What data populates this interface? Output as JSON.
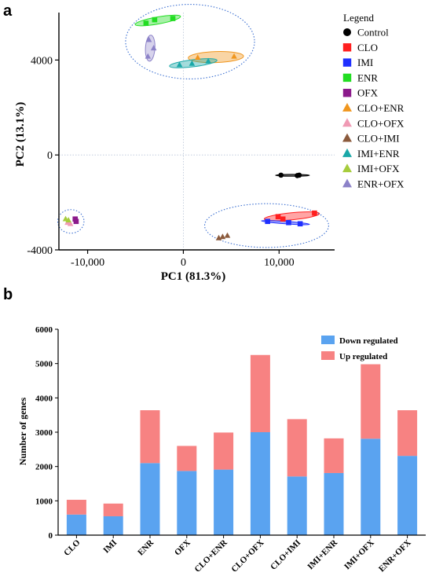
{
  "chart_data": [
    {
      "type": "scatter",
      "panel_label": "a",
      "xlabel": "PC1 (81.3%)",
      "ylabel": "PC2 (13.1%)",
      "xlim": [
        -13000,
        15800
      ],
      "ylim": [
        -4000,
        6000
      ],
      "xticks": [
        -10000,
        0,
        10000
      ],
      "xtick_labels": [
        "-10,000",
        "0",
        "10,000"
      ],
      "yticks": [
        -4000,
        0,
        4000
      ],
      "ytick_labels": [
        "-4000",
        "0",
        "4000"
      ],
      "legend_title": "Legend",
      "legend_position": "right",
      "series": [
        {
          "name": "Control",
          "color": "#000000",
          "marker": "circle",
          "points": [
            [
              10200,
              -850
            ],
            [
              11900,
              -870
            ],
            [
              12100,
              -850
            ]
          ]
        },
        {
          "name": "CLO",
          "color": "#ff1f1f",
          "marker": "square",
          "points": [
            [
              9900,
              -2600
            ],
            [
              10400,
              -2700
            ],
            [
              13700,
              -2450
            ]
          ]
        },
        {
          "name": "IMI",
          "color": "#1f2fff",
          "marker": "square",
          "points": [
            [
              8800,
              -2800
            ],
            [
              11000,
              -2850
            ],
            [
              12200,
              -2900
            ]
          ]
        },
        {
          "name": "ENR",
          "color": "#22dd22",
          "marker": "square",
          "points": [
            [
              -3900,
              5550
            ],
            [
              -3000,
              5700
            ],
            [
              -1100,
              5750
            ]
          ]
        },
        {
          "name": "OFX",
          "color": "#8b1a8b",
          "marker": "square",
          "points": [
            [
              -11300,
              -2700
            ],
            [
              -11200,
              -2800
            ]
          ]
        },
        {
          "name": "CLO+ENR",
          "color": "#f0961e",
          "marker": "triangle",
          "points": [
            [
              1500,
              4100
            ],
            [
              5300,
              4150
            ]
          ]
        },
        {
          "name": "CLO+OFX",
          "color": "#f09ab4",
          "marker": "triangle",
          "points": [
            [
              -12100,
              -2850
            ],
            [
              -11800,
              -2900
            ]
          ]
        },
        {
          "name": "CLO+IMI",
          "color": "#8b5a3c",
          "marker": "triangle",
          "points": [
            [
              3700,
              -3500
            ],
            [
              4100,
              -3450
            ],
            [
              4600,
              -3400
            ]
          ]
        },
        {
          "name": "IMI+ENR",
          "color": "#1aa8a8",
          "marker": "triangle",
          "points": [
            [
              -400,
              3800
            ],
            [
              900,
              3850
            ],
            [
              2600,
              3950
            ]
          ]
        },
        {
          "name": "IMI+OFX",
          "color": "#a6cc3c",
          "marker": "triangle",
          "points": [
            [
              -12300,
              -2700
            ],
            [
              -12000,
              -2750
            ]
          ]
        },
        {
          "name": "ENR+OFX",
          "color": "#8c82c8",
          "marker": "triangle",
          "points": [
            [
              -3700,
              4150
            ],
            [
              -3100,
              4500
            ],
            [
              -3600,
              4850
            ]
          ]
        }
      ]
    },
    {
      "type": "bar",
      "stacked": true,
      "panel_label": "b",
      "ylabel": "Number of genes",
      "xlabel": "",
      "ylim": [
        0,
        6000
      ],
      "yticks": [
        0,
        1000,
        2000,
        3000,
        4000,
        5000,
        6000
      ],
      "categories": [
        "CLO",
        "IMI",
        "ENR",
        "OFX",
        "CLO+ENR",
        "CLO+OFX",
        "CLO+IMI",
        "IMI+ENR",
        "IMI+OFX",
        "ENR+OFX"
      ],
      "legend_position": "top-right",
      "series": [
        {
          "name": "Down regulated",
          "color": "#5aa3f0",
          "values": [
            600,
            550,
            2100,
            1870,
            1910,
            3000,
            1710,
            1810,
            2810,
            2310
          ]
        },
        {
          "name": "Up regulated",
          "color": "#f78282",
          "values": [
            430,
            370,
            1540,
            730,
            1080,
            2250,
            1670,
            1010,
            2170,
            1330
          ]
        }
      ]
    }
  ]
}
